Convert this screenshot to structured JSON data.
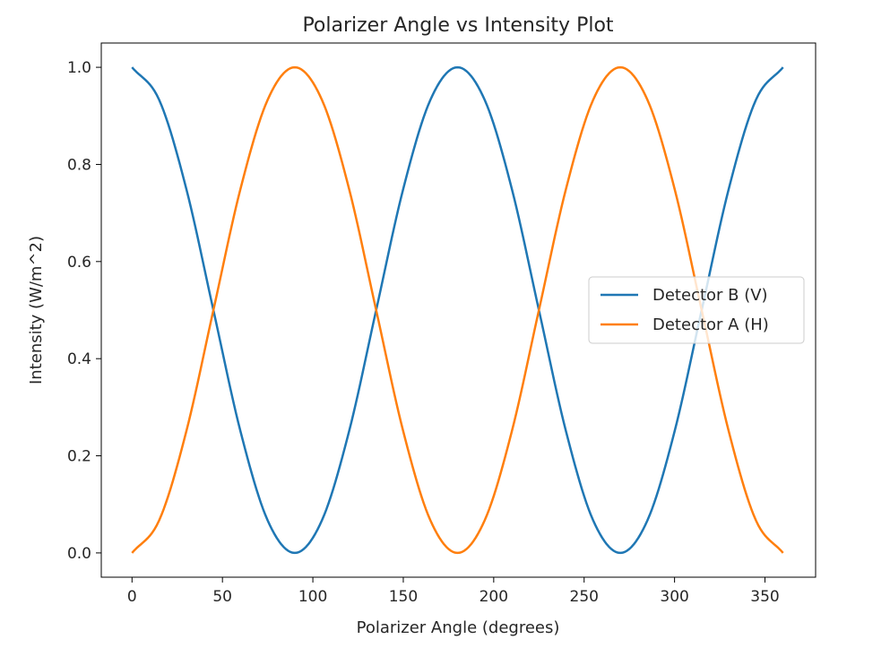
{
  "chart_data": {
    "type": "line",
    "title": "Polarizer Angle vs Intensity Plot",
    "xlabel": "Polarizer Angle (degrees)",
    "ylabel": "Intensity (W/m^2)",
    "xlim": [
      -17,
      378
    ],
    "ylim": [
      -0.05,
      1.05
    ],
    "xticks": [
      0,
      50,
      100,
      150,
      200,
      250,
      300,
      350
    ],
    "xtick_labels": [
      "0",
      "50",
      "100",
      "150",
      "200",
      "250",
      "300",
      "350"
    ],
    "yticks": [
      0.0,
      0.2,
      0.4,
      0.6,
      0.8,
      1.0
    ],
    "ytick_labels": [
      "0.0",
      "0.2",
      "0.4",
      "0.6",
      "0.8",
      "1.0"
    ],
    "grid": false,
    "legend_position": "center-right",
    "x": [
      0,
      15,
      30,
      45,
      60,
      75,
      90,
      105,
      120,
      135,
      150,
      165,
      180,
      195,
      210,
      225,
      240,
      255,
      270,
      285,
      300,
      315,
      330,
      345,
      360
    ],
    "series": [
      {
        "name": "Detector B (V)",
        "color": "#1f77b4",
        "values": [
          1.0,
          0.933,
          0.75,
          0.5,
          0.25,
          0.067,
          0.0,
          0.067,
          0.25,
          0.5,
          0.75,
          0.933,
          1.0,
          0.933,
          0.75,
          0.5,
          0.25,
          0.067,
          0.0,
          0.067,
          0.25,
          0.5,
          0.75,
          0.933,
          1.0
        ]
      },
      {
        "name": "Detector A (H)",
        "color": "#ff7f0e",
        "values": [
          0.0,
          0.067,
          0.25,
          0.5,
          0.75,
          0.933,
          1.0,
          0.933,
          0.75,
          0.5,
          0.25,
          0.067,
          0.0,
          0.067,
          0.25,
          0.5,
          0.75,
          0.933,
          1.0,
          0.933,
          0.75,
          0.5,
          0.25,
          0.067,
          0.0
        ]
      }
    ]
  }
}
